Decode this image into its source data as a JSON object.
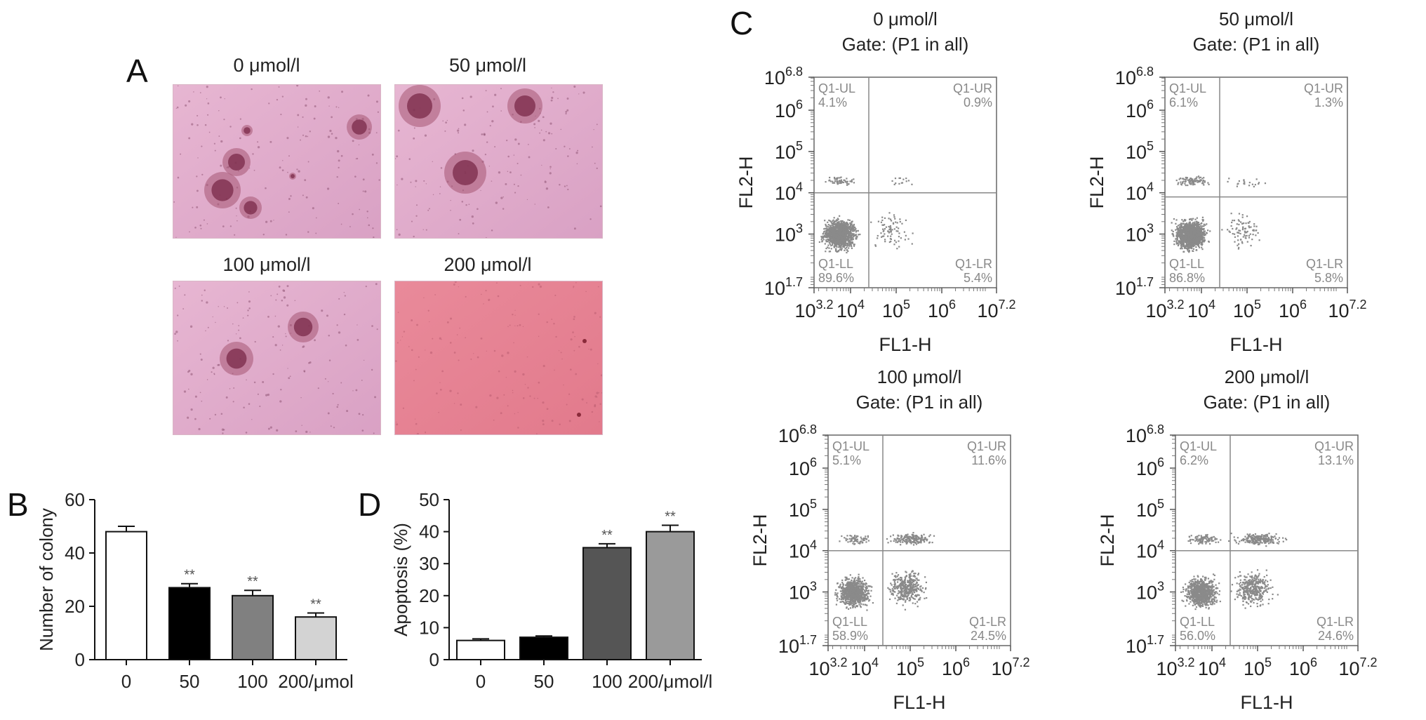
{
  "panels": {
    "A": "A",
    "B": "B",
    "C": "C",
    "D": "D"
  },
  "micrographs": [
    {
      "title": "0 μmol/l",
      "colonies": 6
    },
    {
      "title": "50 μmol/l",
      "colonies": 3
    },
    {
      "title": "100 μmol/l",
      "colonies": 2
    },
    {
      "title": "200 μmol/l",
      "colonies": 0
    }
  ],
  "chart_data": [
    {
      "id": "B",
      "type": "bar",
      "categories": [
        "0",
        "50",
        "100",
        "200/μmol"
      ],
      "values": [
        48,
        27,
        24,
        16
      ],
      "errors": [
        2,
        1.5,
        2,
        1.5
      ],
      "significance": [
        "",
        "**",
        "**",
        "**"
      ],
      "bar_colors": [
        "#ffffff",
        "#000000",
        "#808080",
        "#d3d3d3"
      ],
      "ylabel": "Number of colony",
      "xlabel": "",
      "ylim": [
        0,
        60
      ],
      "yticks": [
        0,
        20,
        40,
        60
      ]
    },
    {
      "id": "D",
      "type": "bar",
      "categories": [
        "0",
        "50",
        "100",
        "200/μmol/l"
      ],
      "values": [
        6,
        7,
        35,
        40
      ],
      "errors": [
        0.5,
        0.4,
        1.2,
        2
      ],
      "significance": [
        "",
        "",
        "**",
        "**"
      ],
      "bar_colors": [
        "#ffffff",
        "#000000",
        "#555555",
        "#9a9a9a"
      ],
      "ylabel": "Apoptosis (%)",
      "xlabel": "",
      "ylim": [
        0,
        50
      ],
      "yticks": [
        0,
        10,
        20,
        30,
        40,
        50
      ]
    },
    {
      "id": "C1",
      "type": "scatter",
      "title": "0 μmol/l",
      "subtitle": "Gate: (P1 in all)",
      "xlabel": "FL1-H",
      "ylabel": "FL2-H",
      "x_scale": "log",
      "y_scale": "log",
      "xlim": [
        3.2,
        7.2
      ],
      "ylim": [
        1.7,
        6.8
      ],
      "x_gate": 4.4,
      "y_gate": 4.0,
      "quadrants": [
        {
          "name": "Q1-UL",
          "value": "4.1%"
        },
        {
          "name": "Q1-UR",
          "value": "0.9%"
        },
        {
          "name": "Q1-LL",
          "value": "89.6%"
        },
        {
          "name": "Q1-LR",
          "value": "5.4%"
        }
      ]
    },
    {
      "id": "C2",
      "type": "scatter",
      "title": "50 μmol/l",
      "subtitle": "Gate: (P1 in all)",
      "xlabel": "FL1-H",
      "ylabel": "FL2-H",
      "x_scale": "log",
      "y_scale": "log",
      "xlim": [
        3.2,
        7.2
      ],
      "ylim": [
        1.7,
        6.8
      ],
      "x_gate": 4.4,
      "y_gate": 3.9,
      "quadrants": [
        {
          "name": "Q1-UL",
          "value": "6.1%"
        },
        {
          "name": "Q1-UR",
          "value": "1.3%"
        },
        {
          "name": "Q1-LL",
          "value": "86.8%"
        },
        {
          "name": "Q1-LR",
          "value": "5.8%"
        }
      ]
    },
    {
      "id": "C3",
      "type": "scatter",
      "title": "100 μmol/l",
      "subtitle": "Gate: (P1 in all)",
      "xlabel": "FL1-H",
      "ylabel": "FL2-H",
      "x_scale": "log",
      "y_scale": "log",
      "xlim": [
        3.2,
        7.2
      ],
      "ylim": [
        1.7,
        6.8
      ],
      "x_gate": 4.4,
      "y_gate": 4.0,
      "quadrants": [
        {
          "name": "Q1-UL",
          "value": "5.1%"
        },
        {
          "name": "Q1-UR",
          "value": "11.6%"
        },
        {
          "name": "Q1-LL",
          "value": "58.9%"
        },
        {
          "name": "Q1-LR",
          "value": "24.5%"
        }
      ]
    },
    {
      "id": "C4",
      "type": "scatter",
      "title": "200 μmol/l",
      "subtitle": "Gate: (P1 in all)",
      "xlabel": "FL1-H",
      "ylabel": "FL2-H",
      "x_scale": "log",
      "y_scale": "log",
      "xlim": [
        3.2,
        7.2
      ],
      "ylim": [
        1.7,
        6.8
      ],
      "x_gate": 4.4,
      "y_gate": 4.0,
      "quadrants": [
        {
          "name": "Q1-UL",
          "value": "6.2%"
        },
        {
          "name": "Q1-UR",
          "value": "13.1%"
        },
        {
          "name": "Q1-LL",
          "value": "56.0%"
        },
        {
          "name": "Q1-LR",
          "value": "24.6%"
        }
      ]
    }
  ]
}
